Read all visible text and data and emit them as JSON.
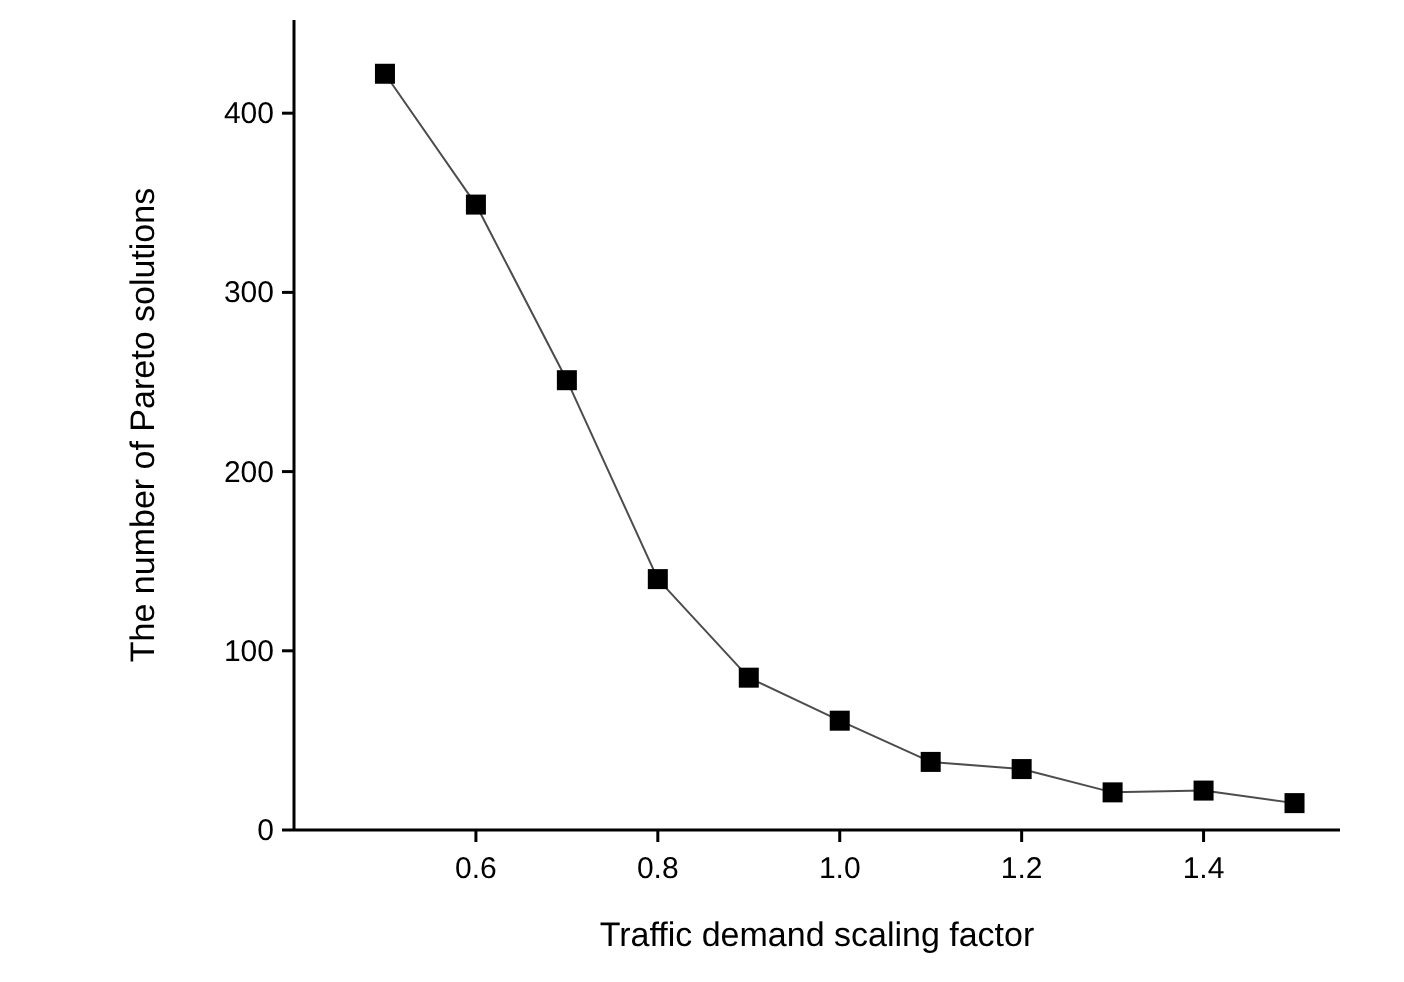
{
  "chart_data": {
    "type": "line",
    "xlabel": "Traffic demand scaling factor",
    "ylabel": "The number of Pareto solutions",
    "x": [
      0.5,
      0.6,
      0.7,
      0.8,
      0.9,
      1.0,
      1.1,
      1.2,
      1.3,
      1.4,
      1.5
    ],
    "series": [
      {
        "color": "#000000",
        "values": [
          422,
          349,
          251,
          140,
          85,
          61,
          38,
          34,
          21,
          22,
          15
        ]
      }
    ],
    "xlim": [
      0.4,
      1.55
    ],
    "ylim": [
      0,
      452
    ],
    "xticks": [
      0.6,
      0.8,
      {
        "value": 1.0,
        "label": "1.0"
      },
      1.2,
      1.4
    ],
    "yticks": [
      0,
      100,
      200,
      300,
      400
    ],
    "marker": "square",
    "line_style": "solid",
    "grid": false
  }
}
